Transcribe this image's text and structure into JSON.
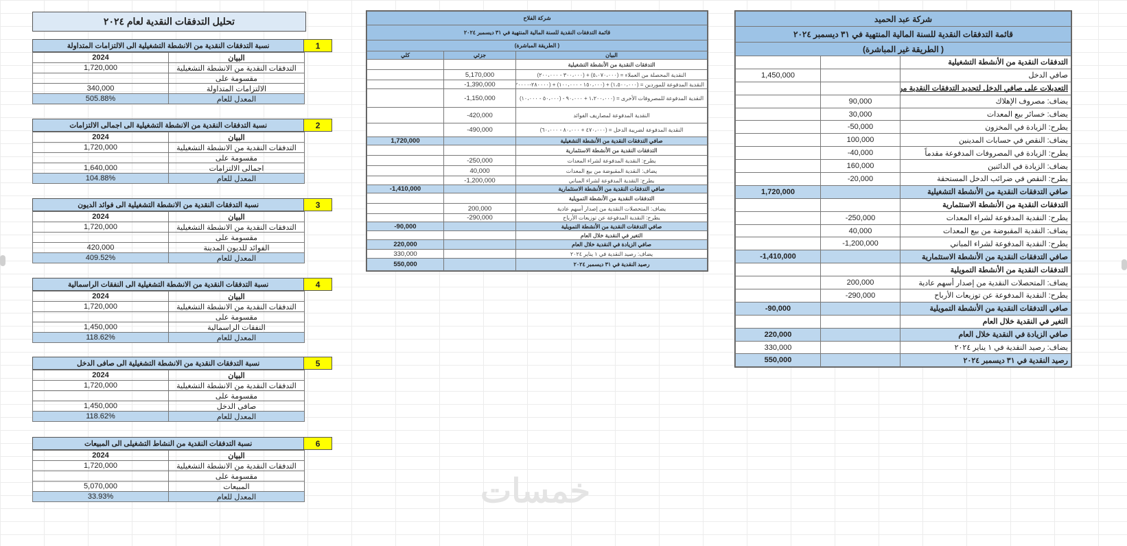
{
  "analysis": {
    "title": "تحليل التدفقات النقدية لعام ٢٠٢٤",
    "column_headers": [
      "البيان",
      "2024"
    ],
    "sections": [
      {
        "number": "1",
        "title": "نسبة التدفقات النقدية من الانشطة التشغيلية الى الالتزامات المتداولة",
        "rows": [
          [
            "التدفقات النقدية من الانشطة التشغيلية",
            "1,720,000"
          ],
          [
            "مقسومة على",
            ""
          ],
          [
            "الالتزامات المتداولة",
            "340,000"
          ],
          [
            "المعدل للعام",
            "505.88%"
          ]
        ]
      },
      {
        "number": "2",
        "title": "نسبة التدفقات النقدية من الانشطة التشغيلية الى اجمالى الالتزامات",
        "rows": [
          [
            "التدفقات النقدية من الانشطة التشغيلية",
            "1,720,000"
          ],
          [
            "مقسومة على",
            ""
          ],
          [
            "اجمالى الالتزامات",
            "1,640,000"
          ],
          [
            "المعدل للعام",
            "104.88%"
          ]
        ]
      },
      {
        "number": "3",
        "title": "نسبة التدفقات النقدية من الانشطة التشغيلية الى فوائد الديون",
        "rows": [
          [
            "التدفقات النقدية من الانشطة التشغيلية",
            "1,720,000"
          ],
          [
            "مقسومة على",
            ""
          ],
          [
            "الفوائد للديون المدينة",
            "420,000"
          ],
          [
            "المعدل للعام",
            "409.52%"
          ]
        ]
      },
      {
        "number": "4",
        "title": "نسبة التدفقات النقدية من الانشطة التشغيلية الى النفقات الراسمالية",
        "rows": [
          [
            "التدفقات النقدية من الانشطة التشغيلية",
            "1,720,000"
          ],
          [
            "مقسومة على",
            ""
          ],
          [
            "النفقات الراسمالية",
            "1,450,000"
          ],
          [
            "المعدل للعام",
            "118.62%"
          ]
        ]
      },
      {
        "number": "5",
        "title": "نسبة التدفقات النقدية من الانشطة التشغيلية الى صافى الدخل",
        "rows": [
          [
            "التدفقات النقدية من الانشطة التشغيلية",
            "1,720,000"
          ],
          [
            "مقسومة على",
            ""
          ],
          [
            "صافى الدخل",
            "1,450,000"
          ],
          [
            "المعدل للعام",
            "118.62%"
          ]
        ]
      },
      {
        "number": "6",
        "title": "نسبة التدفقات النقدية من النشاط التشغيلى الى المبيعات",
        "rows": [
          [
            "التدفقات النقدية من الانشطة التشغيلية",
            "1,720,000"
          ],
          [
            "مقسومة على",
            ""
          ],
          [
            "المبيعات",
            "5,070,000"
          ],
          [
            "المعدل للعام",
            "33.93%"
          ]
        ]
      }
    ]
  },
  "direct_statement": {
    "company": "شركة الفلاح",
    "statement_title": "قائمة التدفقات النقدية للسنة المالية المنتهية في ٣١ ديسمبر ٢٠٢٤",
    "method": "( الطريقة المباشرة)",
    "column_headers": [
      "البيان",
      "جزئي",
      "كلي"
    ],
    "rows": [
      {
        "label": "التدفقات النقدية من الأنشطة التشغيلية",
        "partial": "",
        "total": "",
        "style": "section"
      },
      {
        "label": "النقدية المحصلة من العملاء = (٥،٠٧٠،٠٠٠) + (٣٠٠،٠٠٠ - ٢٠٠،٠٠٠)",
        "partial": "5,170,000",
        "total": ""
      },
      {
        "label": "النقدية المدفوعة للموردين = (١،٥٠٠،٠٠٠) + (١٥٠،٠٠٠ - ١٠٠،٠٠٠) + (٢٨٠٠٠٠-١٢٠٠٠٠)",
        "partial": "-1,390,000",
        "total": ""
      },
      {
        "label": "النقدية المدفوعة للمصروفات الأخرى = (١،٢٠٠،٠٠٠ + ٩٠،٠٠٠ - (٥٠،٠٠٠ - ١٠،٠٠٠)",
        "partial": "-1,150,000",
        "total": ""
      },
      {
        "label": "النقدية المدفوعة لمصاريف الفوائد",
        "partial": "-420,000",
        "total": ""
      },
      {
        "label": "النقدية المدفوعة لضريبة الدخل = (٤٧٠،٠٠٠ + ٨٠،٠٠٠ - ٦٠،٠٠٠)",
        "partial": "-490,000",
        "total": ""
      },
      {
        "label": "صافي التدفقات النقدية من الأنشطة التشغيلية",
        "partial": "",
        "total": "1,720,000",
        "style": "total"
      },
      {
        "label": "التدفقات النقدية من الأنشطة الاستثمارية",
        "partial": "",
        "total": "",
        "style": "section"
      },
      {
        "label": "يطرح: النقدية المدفوعة لشراء المعدات",
        "partial": "-250,000",
        "total": ""
      },
      {
        "label": "يضاف: النقدية المقبوضة من بيع المعدات",
        "partial": "40,000",
        "total": ""
      },
      {
        "label": "يطرح: النقدية المدفوعة لشراء المباني",
        "partial": "-1,200,000",
        "total": ""
      },
      {
        "label": "صافي التدفقات النقدية من الأنشطة الاستثمارية",
        "partial": "",
        "total": "-1,410,000",
        "style": "total"
      },
      {
        "label": "التدفقات النقدية من الأنشطة التمويلية",
        "partial": "",
        "total": "",
        "style": "section"
      },
      {
        "label": "يضاف: المتحصلات النقدية من إصدار أسهم عادية",
        "partial": "200,000",
        "total": ""
      },
      {
        "label": "يطرح: النقدية المدفوعة عن توزيعات الأرباح",
        "partial": "-290,000",
        "total": ""
      },
      {
        "label": "صافي التدفقات النقدية من الأنشطة التمويلية",
        "partial": "",
        "total": "-90,000",
        "style": "total"
      },
      {
        "label": "التغير في النقدية خلال العام",
        "partial": "",
        "total": "",
        "style": "section"
      },
      {
        "label": "صافي الزيادة في النقدية خلال العام",
        "partial": "",
        "total": "220,000",
        "style": "total"
      },
      {
        "label": "يضاف: رصيد النقدية في ١ يناير ٢٠٢٤",
        "partial": "",
        "total": "330,000"
      },
      {
        "label": "رصيد النقدية في ٣١ ديسمبر ٢٠٢٤",
        "partial": "",
        "total": "550,000",
        "style": "total"
      }
    ]
  },
  "indirect_statement": {
    "company": "شركة عبد الحميد",
    "statement_title": "قائمة التدفقات النقدية للسنة المالية المنتهية في ٣١ ديسمبر ٢٠٢٤",
    "method": "( الطريقة غير المباشرة)",
    "rows": [
      {
        "label": "التدفقات النقدية من الأنشطة التشغيلية",
        "partial": "",
        "total": "",
        "style": "section"
      },
      {
        "label": "صافي الدخل",
        "partial": "",
        "total": "1,450,000"
      },
      {
        "label": "التعديلات على صافي الدخل لتحديد التدفقات النقدية من الأنشطة التشغيلية",
        "partial": "",
        "total": "",
        "style": "underline"
      },
      {
        "label": "يضاف: مصروف الإهلاك",
        "partial": "90,000",
        "total": ""
      },
      {
        "label": "يضاف: خسائر بيع المعدات",
        "partial": "30,000",
        "total": ""
      },
      {
        "label": "يطرح: الزيادة في المخزون",
        "partial": "-50,000",
        "total": ""
      },
      {
        "label": "يضاف: النقص في حسابات المدينين",
        "partial": "100,000",
        "total": ""
      },
      {
        "label": "يطرح: الزيادة في المصروفات المدفوعة مقدماً",
        "partial": "-40,000",
        "total": ""
      },
      {
        "label": "يضاف: الزيادة في الدائنين",
        "partial": "160,000",
        "total": ""
      },
      {
        "label": "يطرح: النقص في ضرائب الدخل المستحقة",
        "partial": "-20,000",
        "total": ""
      },
      {
        "label": "صافي التدفقات النقدية من الأنشطة التشغيلية",
        "partial": "",
        "total": "1,720,000",
        "style": "total"
      },
      {
        "label": "التدفقات النقدية من الأنشطة الاستثمارية",
        "partial": "",
        "total": "",
        "style": "section"
      },
      {
        "label": "يطرح: النقدية المدفوعة لشراء المعدات",
        "partial": "-250,000",
        "total": ""
      },
      {
        "label": "يضاف: النقدية المقبوضة من بيع المعدات",
        "partial": "40,000",
        "total": ""
      },
      {
        "label": "يطرح: النقدية المدفوعة لشراء المباني",
        "partial": "-1,200,000",
        "total": ""
      },
      {
        "label": "صافي التدفقات النقدية من الأنشطة الاستثمارية",
        "partial": "",
        "total": "-1,410,000",
        "style": "total"
      },
      {
        "label": "التدفقات النقدية من الأنشطة التمويلية",
        "partial": "",
        "total": "",
        "style": "section"
      },
      {
        "label": "يضاف: المتحصلات النقدية من إصدار أسهم عادية",
        "partial": "200,000",
        "total": ""
      },
      {
        "label": "يطرح: النقدية المدفوعة عن توزيعات الأرباح",
        "partial": "-290,000",
        "total": ""
      },
      {
        "label": "صافي التدفقات النقدية من الأنشطة التمويلية",
        "partial": "",
        "total": "-90,000",
        "style": "total"
      },
      {
        "label": "التغير في النقدية خلال العام",
        "partial": "",
        "total": "",
        "style": "section"
      },
      {
        "label": "صافي الزيادة في النقدية خلال العام",
        "partial": "",
        "total": "220,000",
        "style": "total"
      },
      {
        "label": "يضاف: رصيد النقدية في ١ يناير ٢٠٢٤",
        "partial": "",
        "total": "330,000"
      },
      {
        "label": "رصيد النقدية في ٣١ ديسمبر ٢٠٢٤",
        "partial": "",
        "total": "550,000",
        "style": "total"
      }
    ]
  },
  "watermark": "خمسات",
  "colors": {
    "header_blue": "#9dc3e6",
    "row_blue": "#bdd7ee",
    "title_bg": "#dce9f6",
    "number_badge": "#ffff00"
  }
}
